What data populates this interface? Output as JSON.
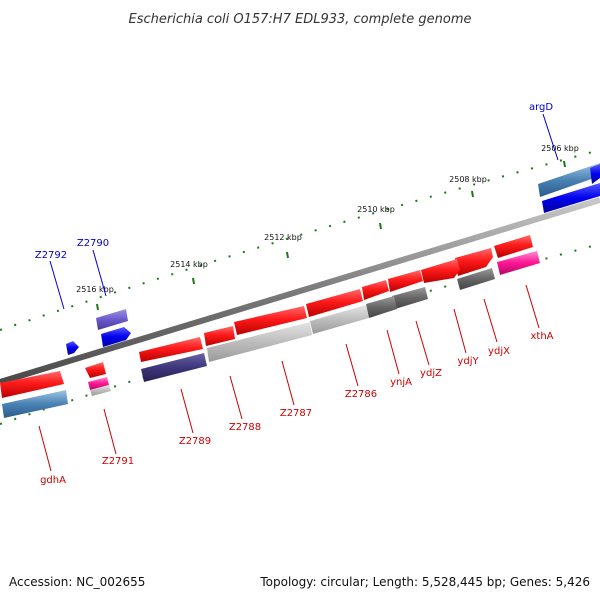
{
  "title": "Escherichia coli O157:H7 EDL933, complete genome",
  "footer": {
    "accession": "Accession: NC_002655",
    "summary": "Topology: circular; Length: 5,528,445 bp; Genes: 5,426"
  },
  "colors": {
    "backbone": "#808080",
    "label_forward": "#0000cc",
    "label_reverse": "#cc0000",
    "tick": "#1a7a1a"
  },
  "kbp_labels": [
    "2506 kbp",
    "2508 kbp",
    "2510 kbp",
    "2512 kbp",
    "2514 kbp",
    "2516 kbp"
  ],
  "forward_labels": [
    "argD",
    "Z2790",
    "Z2792"
  ],
  "reverse_labels": [
    "gdhA",
    "Z2791",
    "Z2789",
    "Z2788",
    "Z2787",
    "Z2786",
    "ynjA",
    "ydjZ",
    "ydjY",
    "ydjX",
    "xthA"
  ]
}
